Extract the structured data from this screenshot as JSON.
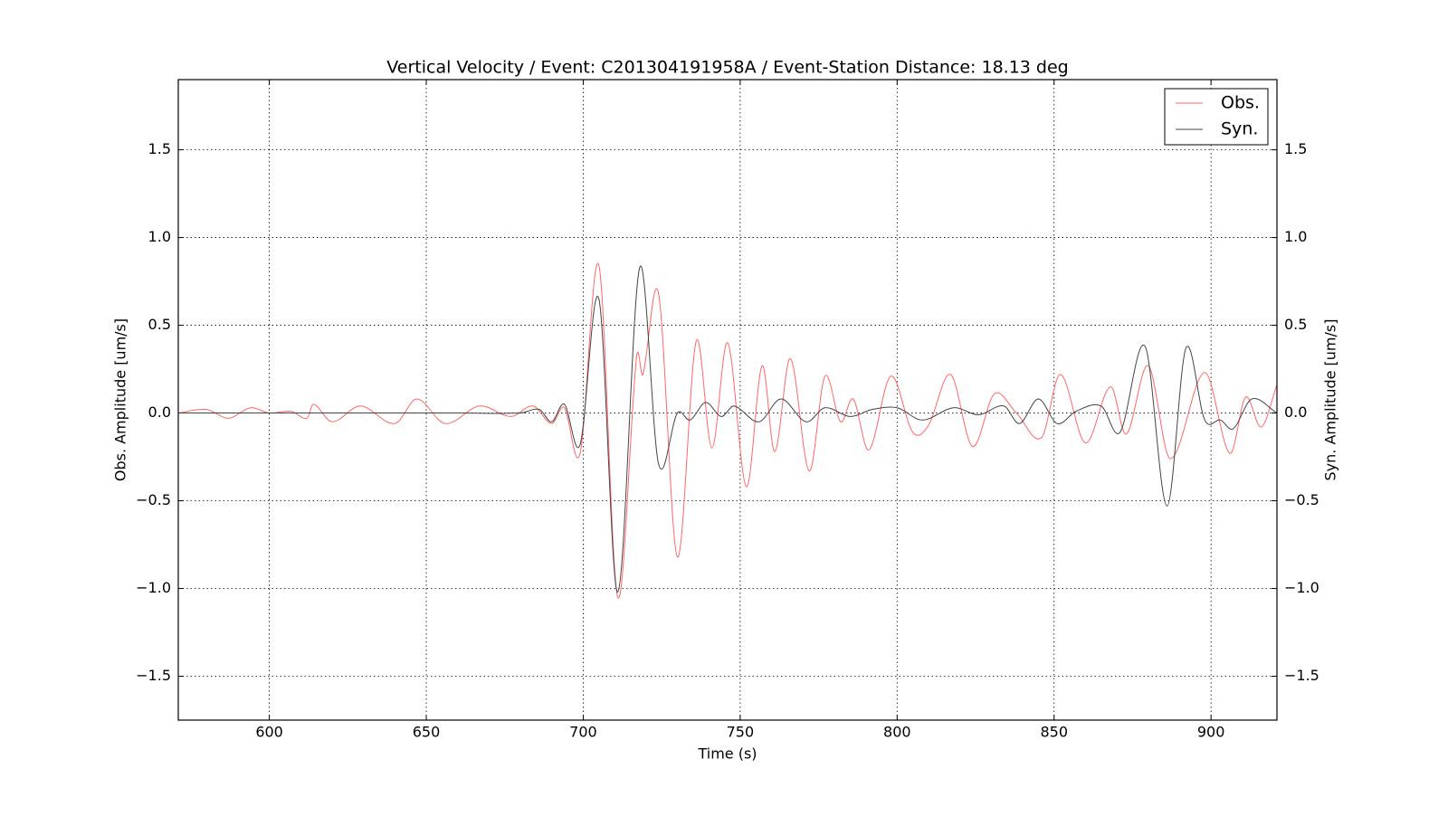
{
  "chart_data": {
    "type": "line",
    "title": "Vertical Velocity / Event: C201304191958A / Event-Station Distance: 18.13 deg",
    "xlabel": "Time (s)",
    "ylabel": "Obs. Amplitude [um/s]",
    "y2label": "Syn. Amplitude [um/s]",
    "xlim": [
      571,
      921
    ],
    "xticks": [
      600,
      650,
      700,
      750,
      800,
      850,
      900
    ],
    "ylim": [
      -1.75,
      1.9
    ],
    "yticks": [
      {
        "value": -1.5,
        "label": "−1.5"
      },
      {
        "value": -1,
        "label": "−1.0"
      },
      {
        "value": -0.5,
        "label": "−0.5"
      },
      {
        "value": 0,
        "label": "0.0"
      },
      0.5,
      {
        "value": 1,
        "label": "1.0"
      },
      1.5
    ],
    "y2lim": [
      -1.75,
      1.9
    ],
    "y2ticks": [
      {
        "value": -1.5,
        "label": "−1.5"
      },
      {
        "value": -1,
        "label": "−1.0"
      },
      {
        "value": -0.5,
        "label": "−0.5"
      },
      {
        "value": 0,
        "label": "0.0"
      },
      0.5,
      {
        "value": 1,
        "label": "1.0"
      },
      1.5
    ],
    "grid": true,
    "legend": "upper right",
    "series": [
      {
        "name": "Obs.",
        "color": "#ff6666",
        "x": [
          571,
          580,
          587,
          594,
          600,
          607,
          612,
          614,
          620,
          629,
          640,
          647,
          656,
          667,
          677,
          684,
          690,
          694,
          699,
          705,
          711,
          717,
          719,
          724,
          730,
          736,
          741,
          746,
          752,
          757,
          761,
          766,
          772,
          777,
          782,
          786,
          791,
          798,
          805,
          810,
          817,
          824,
          831,
          838,
          846,
          852,
          860,
          868,
          873,
          880,
          887,
          898,
          906,
          911,
          916,
          921
        ],
        "values": [
          0,
          0.02,
          -0.03,
          0.03,
          0,
          0.01,
          -0.03,
          0.05,
          -0.05,
          0.04,
          -0.06,
          0.08,
          -0.06,
          0.04,
          -0.02,
          0.04,
          -0.06,
          0.03,
          -0.23,
          0.84,
          -1.05,
          0.32,
          0.22,
          0.68,
          -0.82,
          0.41,
          -0.2,
          0.4,
          -0.42,
          0.27,
          -0.22,
          0.31,
          -0.33,
          0.21,
          -0.05,
          0.08,
          -0.21,
          0.21,
          -0.11,
          -0.07,
          0.22,
          -0.19,
          0.11,
          0,
          -0.14,
          0.22,
          -0.17,
          0.15,
          -0.12,
          0.27,
          -0.26,
          0.23,
          -0.23,
          0.09,
          -0.08,
          0.16
        ]
      },
      {
        "name": "Syn.",
        "color": "#444444",
        "axis": "y2",
        "x": [
          571,
          620,
          660,
          680,
          686,
          690,
          694,
          699,
          705,
          711,
          718,
          724,
          730,
          734,
          739,
          744,
          748,
          756,
          763,
          771,
          777,
          785,
          792,
          800,
          808,
          818,
          826,
          834,
          839,
          845,
          851,
          857,
          865,
          871,
          879,
          886,
          892,
          898,
          903,
          907,
          913,
          921
        ],
        "values": [
          0,
          0,
          0,
          0,
          0.02,
          -0.05,
          0.05,
          -0.18,
          0.65,
          -1.02,
          0.83,
          -0.29,
          0,
          -0.04,
          0.06,
          -0.02,
          0.04,
          -0.05,
          0.08,
          -0.05,
          0.03,
          -0.02,
          0.02,
          0.03,
          -0.04,
          0.03,
          -0.01,
          0.04,
          -0.06,
          0.08,
          -0.06,
          0.01,
          0.04,
          -0.11,
          0.38,
          -0.53,
          0.37,
          -0.04,
          -0.04,
          -0.09,
          0.08,
          0
        ]
      }
    ]
  }
}
